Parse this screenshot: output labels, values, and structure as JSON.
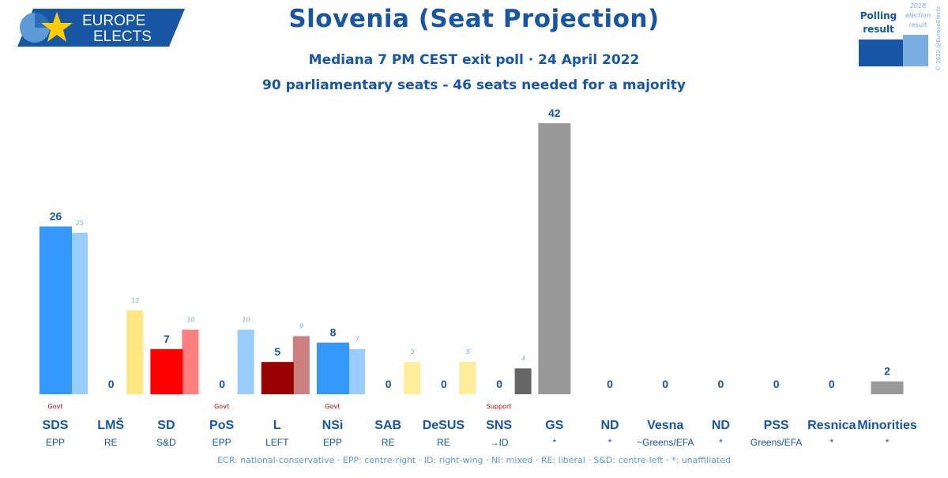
{
  "logo": {
    "line1": "EUROPE",
    "line2": "ELECTS"
  },
  "header": {
    "title": "Slovenia (Seat Projection)",
    "subtitle": "Mediana 7 PM CEST exit poll · 24 April 2022",
    "subtitle2": "90 parliamentary seats - 46 seats needed for a majority"
  },
  "legend": {
    "polling": "Polling result",
    "polling_line1": "Polling",
    "polling_line2": "result",
    "election_line1": "2018",
    "election_line2": "election",
    "election_line3": "result",
    "copyright": "© 2022 @EuropeElects"
  },
  "footer": "ECR: national-conservative · EPP: centre-right · ID: right-wing · NI: mixed · RE: liberal · S&D: centre-left · *: unaffiliated",
  "chart_data": {
    "type": "bar",
    "title": "Slovenia (Seat Projection)",
    "ylim": [
      0,
      42
    ],
    "categories": [
      "SDS",
      "LMŠ",
      "SD",
      "PoS",
      "L",
      "NSi",
      "SAB",
      "DeSUS",
      "SNS",
      "GS",
      "ND",
      "Vesna",
      "ND",
      "PSS",
      "Resnica",
      "Minorities"
    ],
    "groups": [
      "EPP",
      "RE",
      "S&D",
      "EPP",
      "LEFT",
      "EPP",
      "RE",
      "RE",
      "→ID",
      "*",
      "*",
      "~Greens/EFA",
      "*",
      "Greens/EFA",
      "*",
      "*"
    ],
    "roles": [
      "Govt",
      "",
      "",
      "Govt",
      "",
      "Govt",
      "",
      "",
      "Support",
      "",
      "",
      "",
      "",
      "",
      "",
      ""
    ],
    "series": [
      {
        "name": "Polling result",
        "values": [
          26,
          0,
          7,
          0,
          5,
          8,
          0,
          0,
          0,
          42,
          0,
          0,
          0,
          0,
          0,
          2
        ]
      },
      {
        "name": "2018 election result",
        "values": [
          25,
          13,
          10,
          10,
          9,
          7,
          5,
          5,
          4,
          null,
          null,
          null,
          null,
          null,
          null,
          null
        ]
      }
    ],
    "colors": {
      "poll": [
        "#3399ff",
        "#ffee88",
        "#ff0000",
        "#99ccff",
        "#990000",
        "#3399ff",
        "#ffee88",
        "#ffee88",
        "#666666",
        "#999999",
        "#999999",
        "#999999",
        "#999999",
        "#999999",
        "#999999",
        "#999999"
      ],
      "prev": [
        "#99ccff",
        "#ffe680",
        "#ff7f7f",
        "#99ccff",
        "#cc7f7f",
        "#99ccff",
        "#ffee99",
        "#ffee99",
        "#666666",
        "#999999",
        "#999999",
        "#999999",
        "#999999",
        "#999999",
        "#999999",
        "#999999"
      ]
    },
    "label_color": "#1656a5",
    "prev_label_color": "#7aaee0",
    "role_color": "#cc0000"
  }
}
